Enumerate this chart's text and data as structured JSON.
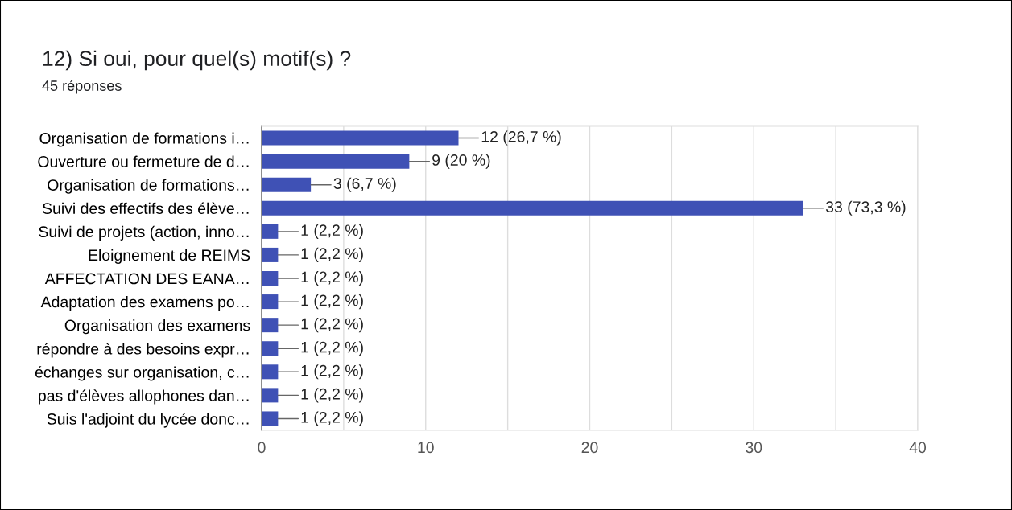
{
  "chart_data": {
    "type": "bar",
    "orientation": "horizontal",
    "title": "12) Si oui, pour quel(s) motif(s) ?",
    "subtitle": "45 réponses",
    "categories": [
      "Organisation de formations i…",
      "Ouverture ou fermeture de d…",
      "Organisation de formations…",
      "Suivi des effectifs des élève…",
      "Suivi de projets (action, inno…",
      "Eloignement de REIMS",
      "AFFECTATION DES EANA…",
      "Adaptation des examens po…",
      "Organisation des examens",
      "répondre à des besoins expr…",
      "échanges sur organisation, c…",
      "pas d'élèves allophones dan…",
      "Suis l'adjoint du lycée donc…"
    ],
    "values": [
      12,
      9,
      3,
      33,
      1,
      1,
      1,
      1,
      1,
      1,
      1,
      1,
      1
    ],
    "value_labels": [
      "12 (26,7 %)",
      "9 (20 %)",
      "3 (6,7 %)",
      "33 (73,3 %)",
      "1 (2,2 %)",
      "1 (2,2 %)",
      "1 (2,2 %)",
      "1 (2,2 %)",
      "1 (2,2 %)",
      "1 (2,2 %)",
      "1 (2,2 %)",
      "1 (2,2 %)",
      "1 (2,2 %)"
    ],
    "color": "#3f51b5",
    "xlim": [
      0,
      40
    ],
    "xticks": [
      0,
      {
        "value": 5,
        "label": null
      },
      10,
      {
        "value": 15,
        "label": null
      },
      20,
      {
        "value": 25,
        "label": null
      },
      30,
      {
        "value": 35,
        "label": null
      },
      40
    ],
    "grid": "x",
    "legend": false
  }
}
